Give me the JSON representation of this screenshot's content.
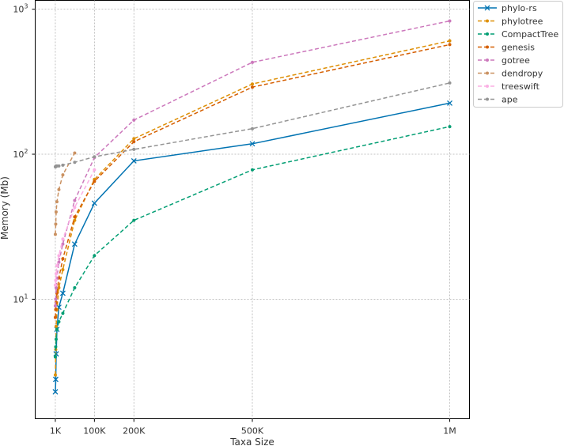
{
  "chart_data": {
    "type": "line",
    "title": "",
    "xlabel": "Taxa Size",
    "ylabel": "Memory (Mb)",
    "xscale": "linear",
    "yscale": "log",
    "xlim": [
      -50000,
      1050000
    ],
    "ylim": [
      1.5,
      1150
    ],
    "grid": true,
    "legend_position": "outside-top-right",
    "x_ticks": [
      {
        "value": 1000,
        "label": "1K"
      },
      {
        "value": 100000,
        "label": "100K"
      },
      {
        "value": 200000,
        "label": "200K"
      },
      {
        "value": 500000,
        "label": "500K"
      },
      {
        "value": 1000000,
        "label": "1M"
      }
    ],
    "y_ticks": [
      {
        "value": 10,
        "label_base": "10",
        "label_exp": "1"
      },
      {
        "value": 100,
        "label_base": "10",
        "label_exp": "2"
      },
      {
        "value": 1000,
        "label_base": "10",
        "label_exp": "3"
      }
    ],
    "series": [
      {
        "name": "phylo-rs",
        "color": "#0173b2",
        "dash": "",
        "marker": "x",
        "x": [
          1000,
          2000,
          3000,
          5000,
          10000,
          20000,
          50000,
          100000,
          200000,
          500000,
          1000000
        ],
        "y": [
          2.3,
          2.8,
          4.2,
          6.2,
          8.8,
          11,
          24,
          46,
          90,
          118,
          225
        ]
      },
      {
        "name": "phylotree",
        "color": "#de8f05",
        "dash": "5,3",
        "marker": "dot",
        "x": [
          1000,
          2000,
          3000,
          5000,
          10000,
          20000,
          50000,
          100000,
          200000,
          500000,
          1000000
        ],
        "y": [
          3.0,
          4.5,
          6.5,
          8.5,
          12,
          16,
          35,
          67,
          128,
          305,
          605
        ]
      },
      {
        "name": "CompactTree",
        "color": "#029e73",
        "dash": "5,3",
        "marker": "dot",
        "x": [
          1000,
          2000,
          3000,
          5000,
          10000,
          20000,
          50000,
          100000,
          200000,
          500000,
          1000000
        ],
        "y": [
          4.0,
          4.7,
          5.3,
          6.2,
          7.0,
          8.0,
          12,
          20,
          35,
          78,
          155
        ]
      },
      {
        "name": "genesis",
        "color": "#d55e00",
        "dash": "5,3",
        "marker": "dot",
        "x": [
          1000,
          2000,
          3000,
          5000,
          10000,
          20000,
          50000,
          100000,
          200000,
          500000,
          1000000
        ],
        "y": [
          7.5,
          8.5,
          9.5,
          11,
          14,
          19,
          37,
          65,
          122,
          290,
          570
        ]
      },
      {
        "name": "gotree",
        "color": "#cc78bc",
        "dash": "5,3",
        "marker": "dot",
        "x": [
          1000,
          2000,
          3000,
          5000,
          10000,
          20000,
          50000,
          100000,
          200000,
          500000,
          1000000
        ],
        "y": [
          9,
          10,
          12,
          14,
          18,
          24,
          48,
          95,
          172,
          430,
          830
        ]
      },
      {
        "name": "dendropy",
        "color": "#ca9161",
        "dash": "5,3",
        "marker": "dot",
        "x": [
          1000,
          2000,
          3000,
          5000,
          10000,
          20000,
          50000
        ],
        "y": [
          28,
          33,
          40,
          47,
          57,
          72,
          102
        ]
      },
      {
        "name": "treeswift",
        "color": "#fbafe4",
        "dash": "5,3",
        "marker": "dot",
        "x": [
          1000,
          2000,
          3000,
          5000,
          10000,
          20000,
          50000,
          100000
        ],
        "y": [
          12.5,
          13.5,
          15,
          17,
          20,
          26,
          43,
          78
        ]
      },
      {
        "name": "ape",
        "color": "#949494",
        "dash": "5,3",
        "marker": "dot",
        "x": [
          1000,
          2000,
          3000,
          5000,
          10000,
          20000,
          50000,
          100000,
          200000,
          500000,
          1000000
        ],
        "y": [
          82,
          82,
          83,
          83,
          83,
          84,
          88,
          96,
          108,
          150,
          310
        ]
      }
    ]
  }
}
